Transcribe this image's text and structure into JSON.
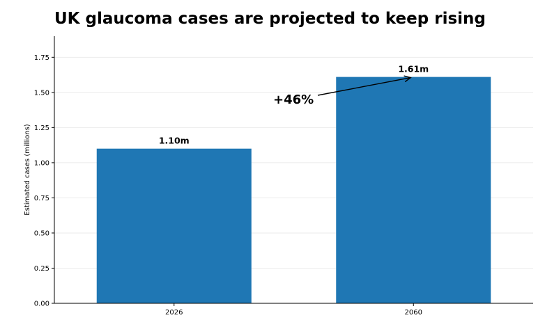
{
  "chart_data": {
    "type": "bar",
    "title": "UK glaucoma cases are projected to keep rising",
    "xlabel": "",
    "ylabel": "Estimated cases (millions)",
    "categories": [
      "2026",
      "2060"
    ],
    "values": [
      1.1,
      1.61
    ],
    "data_labels": [
      "1.10m",
      "1.61m"
    ],
    "ylim": [
      0,
      1.9
    ],
    "yticks": [
      0.0,
      0.25,
      0.5,
      0.75,
      1.0,
      1.25,
      1.5,
      1.75
    ],
    "ytick_labels": [
      "0.00",
      "0.25",
      "0.50",
      "0.75",
      "1.00",
      "1.25",
      "1.50",
      "1.75"
    ],
    "grid": true,
    "bar_color": "#1f77b4",
    "annotation": {
      "text": "+46%",
      "points_to": "2060"
    }
  }
}
